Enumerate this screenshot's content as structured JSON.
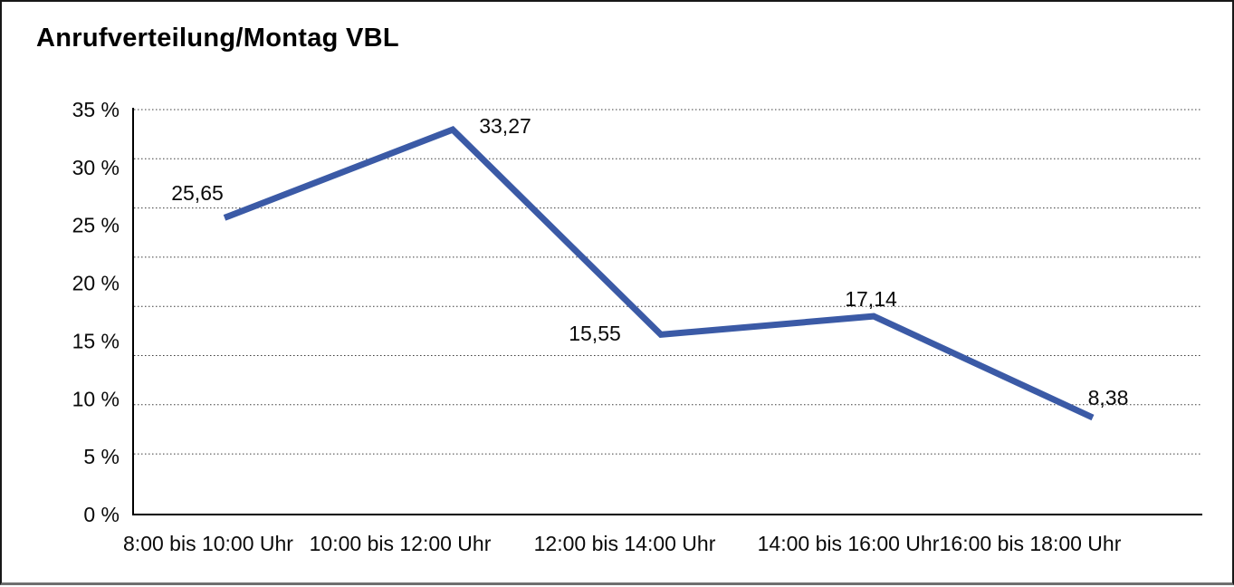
{
  "chart_data": {
    "type": "line",
    "title": "Anrufverteilung/Montag VBL",
    "categories": [
      "8:00 bis 10:00 Uhr",
      "10:00 bis 12:00 Uhr",
      "12:00 bis 14:00 Uhr",
      "14:00 bis 16:00 Uhr",
      "16:00 bis 18:00 Uhr"
    ],
    "series": [
      {
        "color": "#3b5aa6",
        "values": [
          25.65,
          33.27,
          15.55,
          17.14,
          8.38
        ],
        "value_labels": [
          "25,65",
          "33,27",
          "15,55",
          "17,14",
          "8,38"
        ]
      }
    ],
    "xlabel": "",
    "ylabel": "",
    "y_axis": {
      "min": 0,
      "max": 35,
      "unit": "%",
      "tick_values": [
        0,
        5,
        10,
        15,
        20,
        25,
        30,
        35
      ],
      "tick_labels": [
        "0 %",
        "5 %",
        "10 %",
        "15 %",
        "20 %",
        "25 %",
        "30 %",
        "35 %"
      ]
    },
    "grid": {
      "horizontal": true,
      "style": "dotted"
    },
    "legend_position": "none",
    "data_labels_visible": true
  }
}
